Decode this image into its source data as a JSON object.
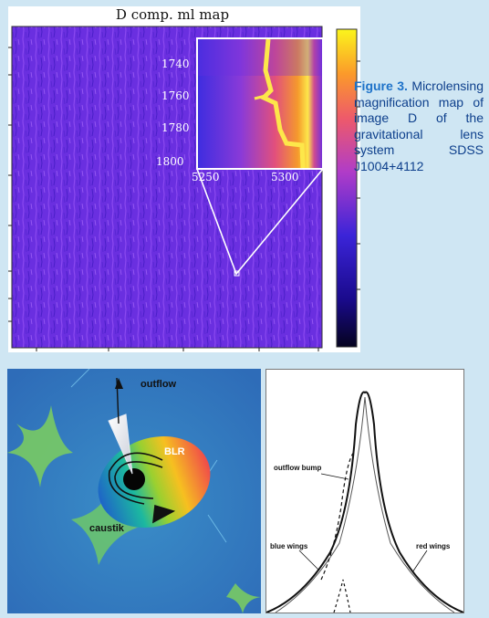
{
  "map_title": "D comp. ml map",
  "inset": {
    "y_ticks": [
      "1740",
      "1760",
      "1780",
      "1800"
    ],
    "x_ticks": [
      "5250",
      "5300"
    ]
  },
  "caption": {
    "label": "Figure 3.",
    "text": " Microlensing magnification map of image D of the gravitational lens system SDSS J1004+4112"
  },
  "diagram_labels": {
    "outflow": "outflow",
    "blr": "BLR",
    "caustic": "caustik"
  },
  "profile_labels": {
    "outflow_bump": "outflow bump",
    "blue_wings": "blue wings",
    "red_wings": "red wings"
  },
  "colors": {
    "background": "#cfe6f3",
    "caption_text": "#0d3f8c",
    "caption_label": "#1d72c9",
    "map_base": "#6a2fe0"
  }
}
